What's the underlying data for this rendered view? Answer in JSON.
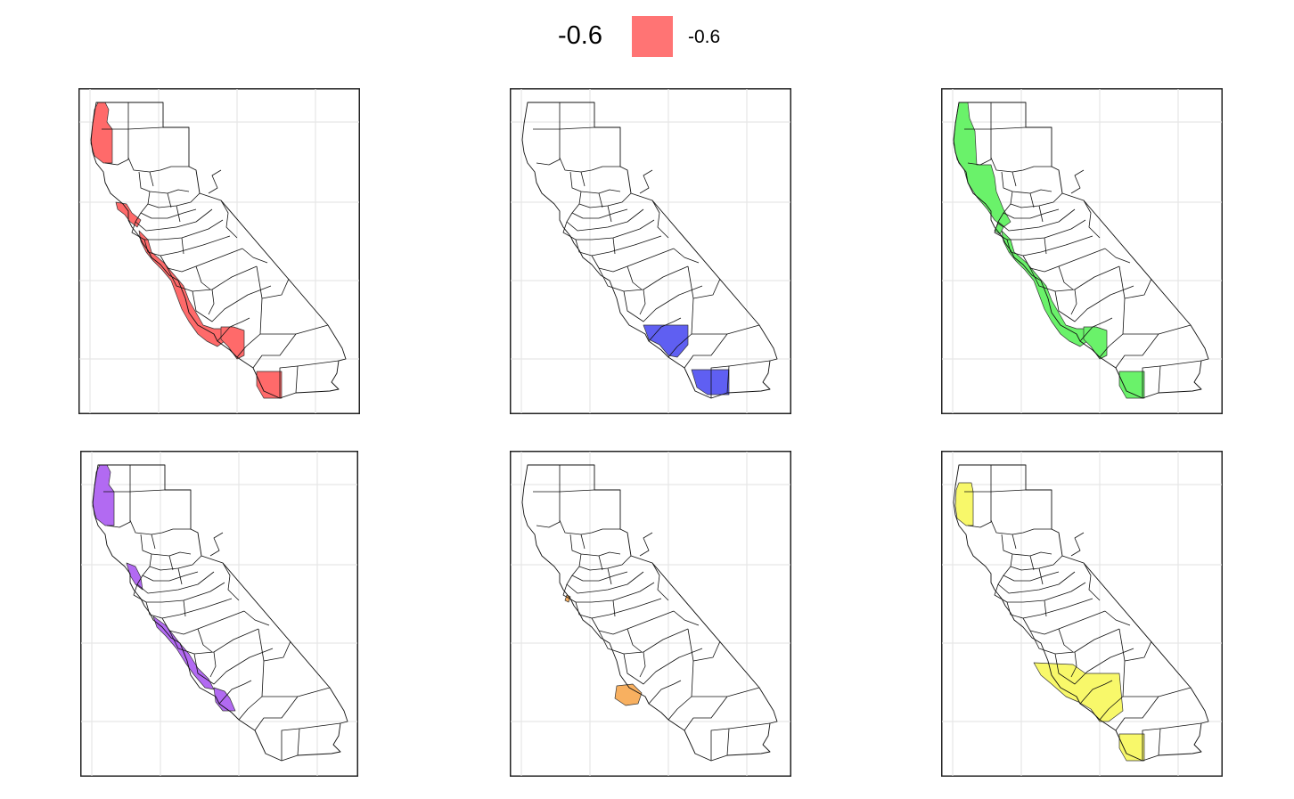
{
  "legend": {
    "title": "-0.6",
    "items": [
      {
        "label": "-0.6",
        "color": "#ff7474"
      }
    ]
  },
  "panels": [
    {
      "id": "panel-1",
      "fill": "#ff6a6a",
      "regions": [
        "north-coast",
        "bay-coast",
        "central-coast",
        "south-coast-east",
        "south-coast-tip"
      ]
    },
    {
      "id": "panel-2",
      "fill": "#5f5ff2",
      "regions": [
        "la-basin",
        "orange-riverside"
      ]
    },
    {
      "id": "panel-3",
      "fill": "#6af26a",
      "regions": [
        "north-coast-long",
        "bay-sliver",
        "central-coast",
        "south-coast-east",
        "south-coast-tip"
      ]
    },
    {
      "id": "panel-4",
      "fill": "#b26af2",
      "regions": [
        "north-coast",
        "bay-inlet",
        "central-coast-inner",
        "la-coast"
      ]
    },
    {
      "id": "panel-5",
      "fill": "#f8b060",
      "regions": [
        "ventura",
        "sf-dot"
      ]
    },
    {
      "id": "panel-6",
      "fill": "#f8f86a",
      "regions": [
        "north-coast-small",
        "south-coast-band",
        "south-coast-tip"
      ]
    }
  ]
}
